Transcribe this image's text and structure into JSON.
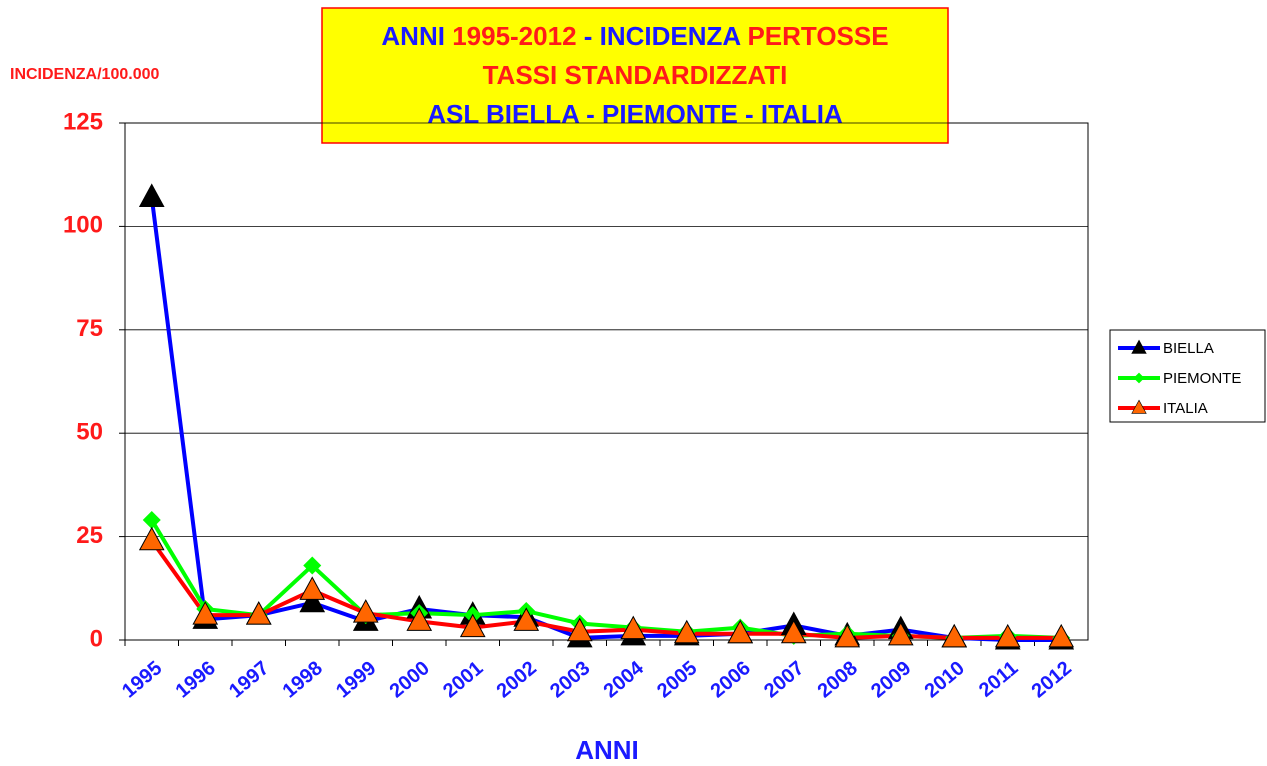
{
  "chart_data": {
    "type": "line",
    "title": [
      [
        "ANNI ",
        "1995-2012",
        " - INCIDENZA ",
        "PERTOSSE"
      ],
      [
        "TASSI STANDARDIZZATI"
      ],
      [
        "ASL BIELLA - PIEMONTE - ITALIA"
      ]
    ],
    "title_colors": [
      [
        "#1a1aff",
        "#ff1a1a",
        "#1a1aff",
        "#ff1a1a"
      ],
      [
        "#ff1a1a"
      ],
      [
        "#1a1aff"
      ]
    ],
    "y_label": "INCIDENZA/100.000",
    "x_label": "ANNI",
    "categories": [
      "1995",
      "1996",
      "1997",
      "1998",
      "1999",
      "2000",
      "2001",
      "2002",
      "2003",
      "2004",
      "2005",
      "2006",
      "2007",
      "2008",
      "2009",
      "2010",
      "2011",
      "2012"
    ],
    "series": [
      {
        "name": "BIELLA",
        "color": "#0000ff",
        "marker": "triangle",
        "marker_color": "#000000",
        "values": [
          107,
          5,
          6,
          9,
          4.5,
          7.5,
          6,
          5.5,
          0.5,
          1,
          1,
          1.5,
          3.5,
          1,
          2.5,
          0.5,
          0,
          0
        ]
      },
      {
        "name": "PIEMONTE",
        "color": "#00ff00",
        "marker": "diamond",
        "marker_color": "#00ff00",
        "values": [
          29,
          7.5,
          6,
          18,
          6,
          6.5,
          6,
          7,
          4,
          3,
          2,
          3,
          1,
          1.5,
          1,
          0.5,
          1,
          0.5
        ]
      },
      {
        "name": "ITALIA",
        "color": "#ff0000",
        "marker": "triangle",
        "marker_color": "#ff6600",
        "values": [
          24,
          6,
          6,
          12,
          6.5,
          4.5,
          3,
          4.5,
          2,
          2.5,
          1.5,
          1.5,
          1.5,
          0.5,
          1,
          0.5,
          0.5,
          0.5
        ]
      }
    ],
    "ylim": [
      0,
      125
    ],
    "yticks": [
      0,
      25,
      50,
      75,
      100,
      125
    ],
    "grid": true,
    "legend": "right"
  }
}
